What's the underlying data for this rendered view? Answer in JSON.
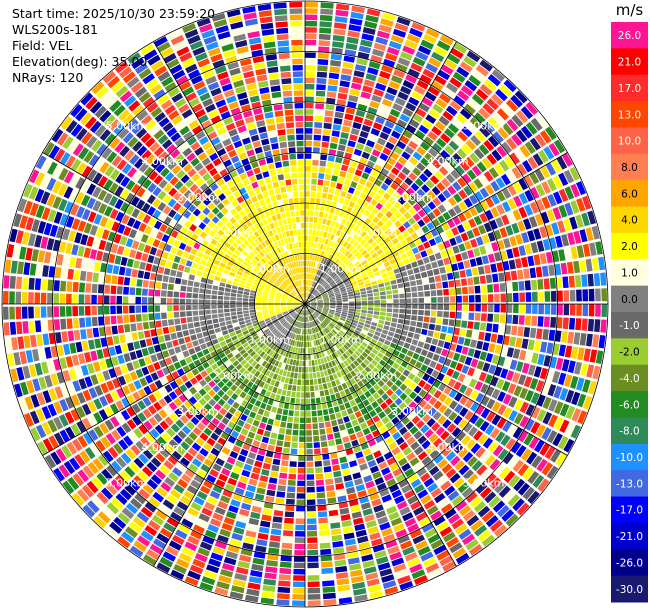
{
  "header": {
    "start_time": "Start time: 2025/10/30 23:59:20",
    "instrument": "WLS200s-181",
    "field": "Field: VEL",
    "elevation": "Elevation(deg): 35.00",
    "nrays": "NRays: 120"
  },
  "chart_data": {
    "type": "heatmap",
    "subtype": "polar-ppi",
    "field": "VEL",
    "n_rays": 120,
    "elevation_deg": 35.0,
    "max_range_km": 6.0,
    "range_ring_labels": [
      "1.00km",
      "2.00km",
      "3.00km",
      "4.00km",
      "5.00km"
    ],
    "colorbar": {
      "unit": "m/s",
      "tick_labels": [
        "26.0",
        "21.0",
        "17.0",
        "13.0",
        "10.0",
        "8.0",
        "6.0",
        "4.0",
        "2.0",
        "1.0",
        "0.0",
        "-1.0",
        "-2.0",
        "-4.0",
        "-6.0",
        "-8.0",
        "-10.0",
        "-13.0",
        "-17.0",
        "-21.0",
        "-26.0",
        "-30.0"
      ],
      "colors": [
        "#ff1493",
        "#ff0000",
        "#ff2a2a",
        "#ff4500",
        "#ff6347",
        "#ff7f50",
        "#ffa500",
        "#ffd700",
        "#ffff00",
        "#ffffe0",
        "#808080",
        "#696969",
        "#9acd32",
        "#6b8e23",
        "#228b22",
        "#2e8b57",
        "#1e90ff",
        "#4169e1",
        "#0000ff",
        "#0000cd",
        "#00008b",
        "#191970"
      ]
    }
  }
}
